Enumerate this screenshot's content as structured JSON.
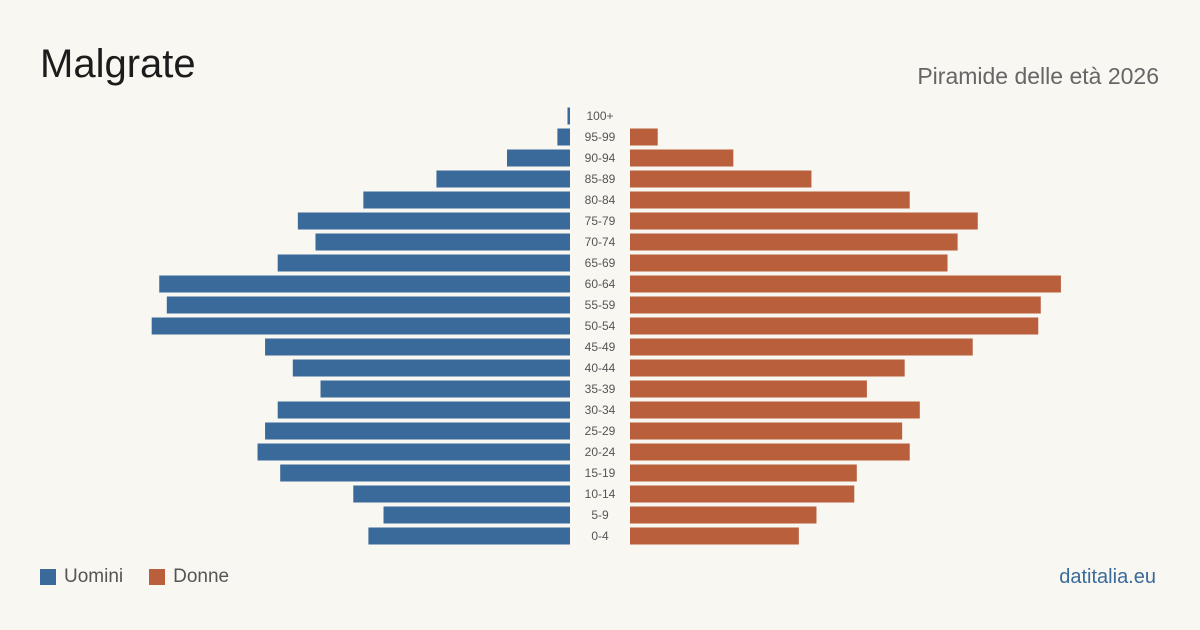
{
  "header": {
    "title": "Malgrate",
    "subtitle": "Piramide delle età 2026"
  },
  "legend": {
    "male_label": "Uomini",
    "female_label": "Donne"
  },
  "source": "datitalia.eu",
  "colors": {
    "male": "#3a6a9a",
    "female": "#b95f3c",
    "background": "#f9f7f2"
  },
  "chart_data": {
    "type": "bar",
    "orientation": "horizontal-pyramid",
    "categories": [
      "100+",
      "95-99",
      "90-94",
      "85-89",
      "80-84",
      "75-79",
      "70-74",
      "65-69",
      "60-64",
      "55-59",
      "50-54",
      "45-49",
      "40-44",
      "35-39",
      "30-34",
      "25-29",
      "20-24",
      "15-19",
      "10-14",
      "5-9",
      "0-4"
    ],
    "series": [
      {
        "name": "Uomini",
        "values": [
          1,
          5,
          25,
          53,
          82,
          108,
          101,
          116,
          163,
          160,
          166,
          121,
          110,
          99,
          116,
          121,
          124,
          115,
          86,
          74,
          80
        ]
      },
      {
        "name": "Donne",
        "values": [
          0,
          11,
          41,
          72,
          111,
          138,
          130,
          126,
          171,
          163,
          162,
          136,
          109,
          94,
          115,
          108,
          111,
          90,
          89,
          74,
          67
        ]
      }
    ],
    "xlim": [
      0,
      175
    ],
    "grid": false,
    "legend_position": "bottom-left"
  }
}
